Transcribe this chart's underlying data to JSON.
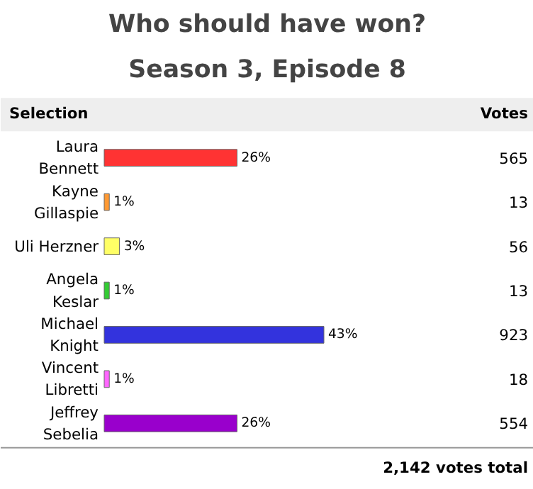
{
  "chart_data": {
    "type": "bar",
    "orientation": "horizontal",
    "title": "Who should have won?",
    "subtitle": "Season 3, Episode 8",
    "categories": [
      "Laura Bennett",
      "Kayne Gillaspie",
      "Uli Herzner",
      "Angela Keslar",
      "Michael Knight",
      "Vincent Libretti",
      "Jeffrey Sebelia"
    ],
    "values": [
      26,
      1,
      3,
      1,
      43,
      1,
      26
    ],
    "value_labels": [
      "26%",
      "1%",
      "3%",
      "1%",
      "43%",
      "1%",
      "26%"
    ],
    "colors": [
      "#ff3333",
      "#ff9933",
      "#ffff66",
      "#33cc33",
      "#3333dd",
      "#ff66ff",
      "#9900cc"
    ],
    "annotations": [
      "Selection",
      "Votes",
      "565",
      "13",
      "56",
      "13",
      "923",
      "18",
      "554",
      "2,142 votes total"
    ]
  }
}
